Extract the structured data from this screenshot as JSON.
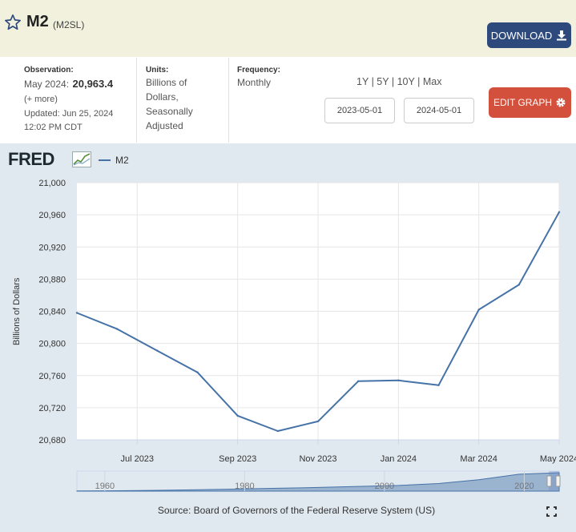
{
  "header": {
    "title": "M2",
    "series_id": "(M2SL)",
    "download_label": "DOWNLOAD"
  },
  "meta": {
    "observation_head": "Observation:",
    "observation_prefix": "May 2024:",
    "observation_value": "20,963.4",
    "more": "(+ more)",
    "updated": "Updated: Jun 25, 2024",
    "updated_time": "12:02 PM CDT",
    "units_head": "Units:",
    "units_lines": [
      "Billions of",
      "Dollars,",
      "Seasonally",
      "Adjusted"
    ],
    "frequency_head": "Frequency:",
    "frequency": "Monthly"
  },
  "ranges": [
    "1Y",
    "5Y",
    "10Y",
    "Max"
  ],
  "range_sep": "|",
  "dates": {
    "start": "2023-05-01",
    "end": "2024-05-01"
  },
  "edit_label": "EDIT GRAPH",
  "brand": "FRED",
  "source": "Source: Board of Governors of the Federal Reserve System (US)",
  "colors": {
    "series": "#4572a7",
    "download_bg": "#2e4a7d",
    "edit_bg": "#d2503c",
    "banner": "#f1f1dd",
    "graph_bg": "#e1e9f0"
  },
  "chart_data": {
    "type": "line",
    "series": [
      {
        "name": "M2",
        "x": [
          0,
          1,
          2,
          3,
          4,
          5,
          6,
          7,
          8,
          9,
          10,
          11,
          12
        ],
        "values": [
          20838,
          20818,
          20791,
          20764,
          20710,
          20691,
          20703,
          20753,
          20754,
          20748,
          20842,
          20873,
          20963.4
        ]
      }
    ],
    "x_ticks": [
      {
        "x": 1.5,
        "label": "Jul 2023"
      },
      {
        "x": 4,
        "label": "Sep 2023"
      },
      {
        "x": 6,
        "label": "Nov 2023"
      },
      {
        "x": 8,
        "label": "Jan 2024"
      },
      {
        "x": 10,
        "label": "Mar 2024"
      },
      {
        "x": 12,
        "label": "May 2024"
      }
    ],
    "xlim": [
      0,
      12
    ],
    "y_ticks": [
      20680,
      20720,
      20760,
      20800,
      20840,
      20880,
      20920,
      20960,
      21000
    ],
    "y_tick_labels": [
      "20,680",
      "20,720",
      "20,760",
      "20,800",
      "20,840",
      "20,880",
      "20,920",
      "20,960",
      "21,000"
    ],
    "ylim": [
      20680,
      21000
    ],
    "ylabel": "Billions of Dollars",
    "xlabel": "",
    "grid": true,
    "navigator": {
      "labels": [
        "1960",
        "1980",
        "2000",
        "2020"
      ],
      "label_years": [
        1960,
        1980,
        2000,
        2020
      ],
      "year_range": [
        1956,
        2025
      ],
      "values": [
        0.3,
        0.5,
        0.9,
        1.6,
        2.4,
        3.3,
        4.2,
        5.4,
        6.5,
        8.7,
        13,
        19.3,
        21
      ]
    }
  }
}
